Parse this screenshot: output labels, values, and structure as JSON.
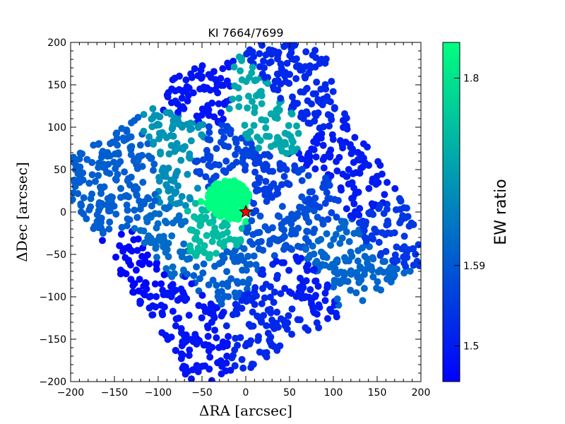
{
  "chart_data": {
    "type": "scatter",
    "title": "KI 7664/7699",
    "xlabel": "ΔRA [arcsec]",
    "ylabel": "ΔDec [arcsec]",
    "xlim": [
      -200,
      200
    ],
    "ylim": [
      -200,
      200
    ],
    "xticks": [
      "−200",
      "−150",
      "−100",
      "−50",
      "0",
      "50",
      "100",
      "150",
      "200"
    ],
    "yticks": [
      "−200",
      "−150",
      "−100",
      "−50",
      "0",
      "50",
      "100",
      "150",
      "200"
    ],
    "grid": false,
    "colorbar": {
      "label": "EW ratio",
      "range": [
        1.46,
        1.84
      ],
      "colors": [
        "#0000ff",
        "#00ff80"
      ],
      "ticks": [
        "1.5",
        "1.59",
        "1.8"
      ],
      "tick_values": [
        1.5,
        1.59,
        1.8
      ]
    },
    "marker": {
      "name": "source",
      "x": 0,
      "y": 0,
      "shape": "star",
      "color": "#ff0000"
    },
    "regions": [
      {
        "name": "center",
        "cx": -20,
        "cy": 15,
        "r": 25,
        "value": 1.84
      },
      {
        "name": "center-south",
        "cx": -45,
        "cy": -25,
        "r": 28,
        "value": 1.74
      },
      {
        "name": "top-middle",
        "cx": 15,
        "cy": 120,
        "r": 38,
        "value": 1.71
      },
      {
        "name": "upper-left-arm",
        "cx": -65,
        "cy": 85,
        "r": 35,
        "value": 1.68
      },
      {
        "name": "mid-left",
        "cx": -80,
        "cy": 35,
        "r": 25,
        "value": 1.67
      },
      {
        "name": "west-arm",
        "cx": -150,
        "cy": 35,
        "r": 45,
        "value": 1.6
      },
      {
        "name": "left-lower",
        "cx": -90,
        "cy": -30,
        "r": 30,
        "value": 1.62
      },
      {
        "name": "east-lower",
        "cx": 110,
        "cy": -60,
        "r": 45,
        "value": 1.61
      },
      {
        "name": "south-central",
        "cx": -20,
        "cy": -80,
        "r": 30,
        "value": 1.6
      },
      {
        "name": "mid-east",
        "cx": 55,
        "cy": -10,
        "r": 35,
        "value": 1.58
      },
      {
        "name": "north-central",
        "cx": -35,
        "cy": 70,
        "r": 40,
        "value": 1.56
      },
      {
        "name": "center-east",
        "cx": 20,
        "cy": 30,
        "r": 30,
        "value": 1.55
      },
      {
        "name": "east-mid",
        "cx": 90,
        "cy": 20,
        "r": 30,
        "value": 1.56
      },
      {
        "name": "right-upper",
        "cx": 120,
        "cy": 40,
        "r": 40,
        "value": 1.5
      },
      {
        "name": "top-right-arm",
        "cx": 60,
        "cy": 155,
        "r": 40,
        "value": 1.52
      },
      {
        "name": "top-left-blob",
        "cx": -50,
        "cy": 130,
        "r": 35,
        "value": 1.49
      },
      {
        "name": "south-middle",
        "cx": 30,
        "cy": -120,
        "r": 45,
        "value": 1.52
      },
      {
        "name": "south-left",
        "cx": -70,
        "cy": -140,
        "r": 40,
        "value": 1.49
      },
      {
        "name": "left-bottom",
        "cx": -130,
        "cy": -60,
        "r": 30,
        "value": 1.47
      },
      {
        "name": "lower-right",
        "cx": 70,
        "cy": -90,
        "r": 35,
        "value": 1.5
      },
      {
        "name": "right-mid-low",
        "cx": 160,
        "cy": -25,
        "r": 30,
        "value": 1.54
      }
    ]
  }
}
